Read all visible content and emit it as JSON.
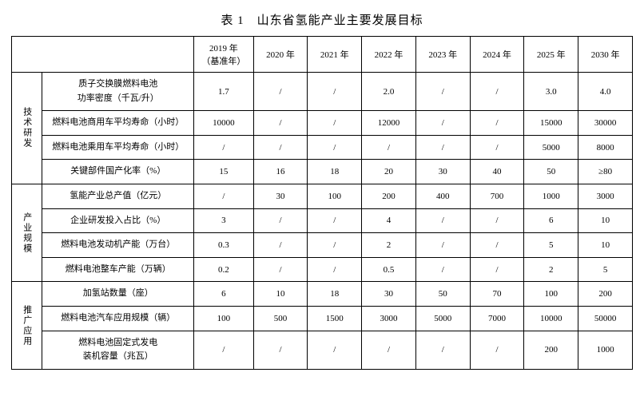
{
  "title": "表 1　山东省氢能产业主要发展目标",
  "columns": [
    "2019 年（基准年）",
    "2020 年",
    "2021 年",
    "2022 年",
    "2023 年",
    "2024 年",
    "2025 年",
    "2030 年"
  ],
  "groups": [
    {
      "label": "技术研发",
      "rows": [
        {
          "metric_lines": [
            "质子交换膜燃料电池",
            "功率密度（千瓦/升）"
          ],
          "values": [
            "1.7",
            "/",
            "/",
            "2.0",
            "/",
            "/",
            "3.0",
            "4.0"
          ]
        },
        {
          "metric_lines": [
            "燃料电池商用车平均寿命（小时）"
          ],
          "values": [
            "10000",
            "/",
            "/",
            "12000",
            "/",
            "/",
            "15000",
            "30000"
          ]
        },
        {
          "metric_lines": [
            "燃料电池乘用车平均寿命（小时）"
          ],
          "values": [
            "/",
            "/",
            "/",
            "/",
            "/",
            "/",
            "5000",
            "8000"
          ]
        },
        {
          "metric_lines": [
            "关键部件国产化率（%）"
          ],
          "values": [
            "15",
            "16",
            "18",
            "20",
            "30",
            "40",
            "50",
            "≥80"
          ]
        }
      ]
    },
    {
      "label": "产业规模",
      "rows": [
        {
          "metric_lines": [
            "氢能产业总产值（亿元）"
          ],
          "values": [
            "/",
            "30",
            "100",
            "200",
            "400",
            "700",
            "1000",
            "3000"
          ]
        },
        {
          "metric_lines": [
            "企业研发投入占比（%）"
          ],
          "values": [
            "3",
            "/",
            "/",
            "4",
            "/",
            "/",
            "6",
            "10"
          ]
        },
        {
          "metric_lines": [
            "燃料电池发动机产能（万台）"
          ],
          "values": [
            "0.3",
            "/",
            "/",
            "2",
            "/",
            "/",
            "5",
            "10"
          ]
        },
        {
          "metric_lines": [
            "燃料电池整车产能（万辆）"
          ],
          "values": [
            "0.2",
            "/",
            "/",
            "0.5",
            "/",
            "/",
            "2",
            "5"
          ]
        }
      ]
    },
    {
      "label": "推广应用",
      "rows": [
        {
          "metric_lines": [
            "加氢站数量（座）"
          ],
          "values": [
            "6",
            "10",
            "18",
            "30",
            "50",
            "70",
            "100",
            "200"
          ]
        },
        {
          "metric_lines": [
            "燃料电池汽车应用规模（辆）"
          ],
          "values": [
            "100",
            "500",
            "1500",
            "3000",
            "5000",
            "7000",
            "10000",
            "50000"
          ]
        },
        {
          "metric_lines": [
            "燃料电池固定式发电",
            "装机容量（兆瓦）"
          ],
          "values": [
            "/",
            "/",
            "/",
            "/",
            "/",
            "/",
            "200",
            "1000"
          ]
        }
      ]
    }
  ],
  "style": {
    "background_color": "#ffffff",
    "border_color": "#000000",
    "font_family": "SimSun",
    "title_fontsize": 15,
    "body_fontsize": 11
  }
}
